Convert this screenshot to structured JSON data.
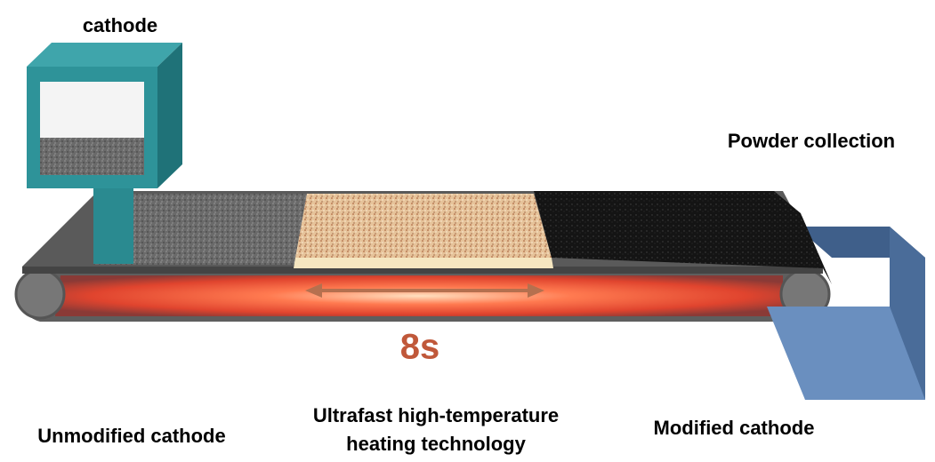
{
  "labels": {
    "cathode_feed": "cathode",
    "powder_collection": "Powder collection",
    "duration": "8s",
    "unmodified": "Unmodified cathode",
    "heating": [
      "Ultrafast high-temperature",
      "heating technology"
    ],
    "modified": "Modified cathode"
  }
}
